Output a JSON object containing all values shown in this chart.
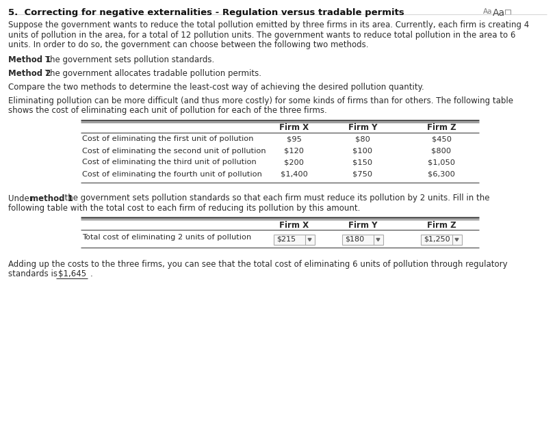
{
  "title": "5.  Correcting for negative externalities - Regulation versus tradable permits",
  "aa_text": "Aa  Aa",
  "para1_line1": "Suppose the government wants to reduce the total pollution emitted by three firms in its area. Currently, each firm is creating 4",
  "para1_line2": "units of pollution in the area, for a total of 12 pollution units. The government wants to reduce total pollution in the area to 6",
  "para1_line3": "units. In order to do so, the government can choose between the following two methods.",
  "method1_bold": "Method 1",
  "method1_rest": ": The government sets pollution standards.",
  "method2_bold": "Method 2",
  "method2_rest": ": The government allocates tradable pollution permits.",
  "compare_text": "Compare the two methods to determine the least-cost way of achieving the desired pollution quantity.",
  "elim_line1": "Eliminating pollution can be more difficult (and thus more costly) for some kinds of firms than for others. The following table",
  "elim_line2": "shows the cost of eliminating each unit of pollution for each of the three firms.",
  "table1_headers": [
    "Firm X",
    "Firm Y",
    "Firm Z"
  ],
  "table1_rows": [
    [
      "Cost of eliminating the first unit of pollution",
      "$95",
      "$80",
      "$450"
    ],
    [
      "Cost of eliminating the second unit of pollution",
      "$120",
      "$100",
      "$800"
    ],
    [
      "Cost of eliminating the third unit of pollution",
      "$200",
      "$150",
      "$1,050"
    ],
    [
      "Cost of eliminating the fourth unit of pollution",
      "$1,400",
      "$750",
      "$6,300"
    ]
  ],
  "under_pre": "Under ",
  "under_bold": "method 1",
  "under_post": ", the government sets pollution standards so that each firm must reduce its pollution by 2 units. Fill in the",
  "under_line2": "following table with the total cost to each firm of reducing its pollution by this amount.",
  "table2_headers": [
    "Firm X",
    "Firm Y",
    "Firm Z"
  ],
  "table2_row_label": "Total cost of eliminating 2 units of pollution",
  "table2_values": [
    "$215",
    "$180",
    "$1,250"
  ],
  "adding_line1": "Adding up the costs to the three firms, you can see that the total cost of eliminating 6 units of pollution through regulatory",
  "adding_line2_pre": "standards is",
  "total_value": "$1,645",
  "adding_line2_post": ".",
  "bg_color": "#ffffff",
  "text_color": "#2a2a2a",
  "light_gray": "#999999",
  "line_color": "#444444",
  "font_size": 8.5,
  "title_font_size": 9.5
}
